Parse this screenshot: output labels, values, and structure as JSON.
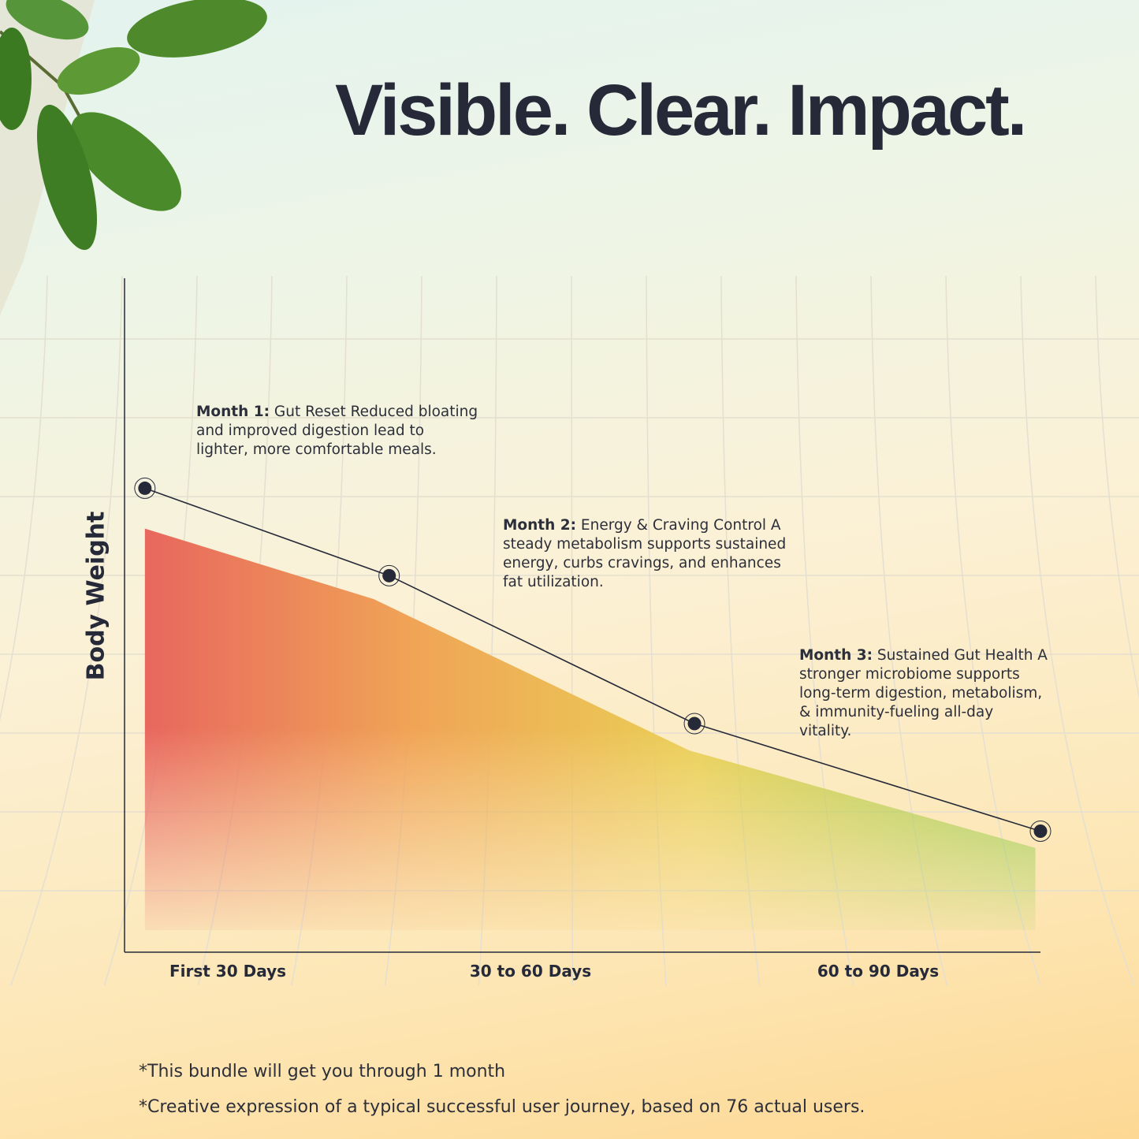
{
  "title": "Visible. Clear. Impact.",
  "chart_data": {
    "type": "area",
    "ylabel": "Body Weight",
    "xlabel": "",
    "categories": [
      "First 30 Days",
      "30 to 60 Days",
      "60 to 90 Days"
    ],
    "xlim": [
      0,
      90
    ],
    "ylim": [
      0,
      100
    ],
    "grid": true,
    "line_series": {
      "x": [
        2,
        26,
        56,
        90
      ],
      "y": [
        69,
        56,
        34,
        18
      ]
    },
    "area_series": {
      "x": [
        2,
        24.5,
        55.5,
        89.5
      ],
      "y": [
        63,
        52.5,
        30,
        15.5
      ]
    },
    "area_colors": [
      "#e8675e",
      "#f0a456",
      "#e9cf55",
      "#8fcc4a"
    ],
    "line_color": "#262a38",
    "annotations": [
      {
        "heading": "Month 1:",
        "text": "Gut Reset Reduced bloating and improved digestion lead to lighter, more comfortable meals."
      },
      {
        "heading": "Month 2:",
        "text": "Energy & Craving Control A steady metabolism supports sustained energy, curbs cravings, and enhances fat utilization."
      },
      {
        "heading": "Month 3:",
        "text": "Sustained Gut Health A stronger microbiome supports long-term digestion, metabolism, & immunity-fueling all-day vitality."
      }
    ]
  },
  "footnotes": [
    "*This bundle will get you through 1 month",
    "*Creative expression of a typical successful user journey, based on 76 actual users."
  ]
}
